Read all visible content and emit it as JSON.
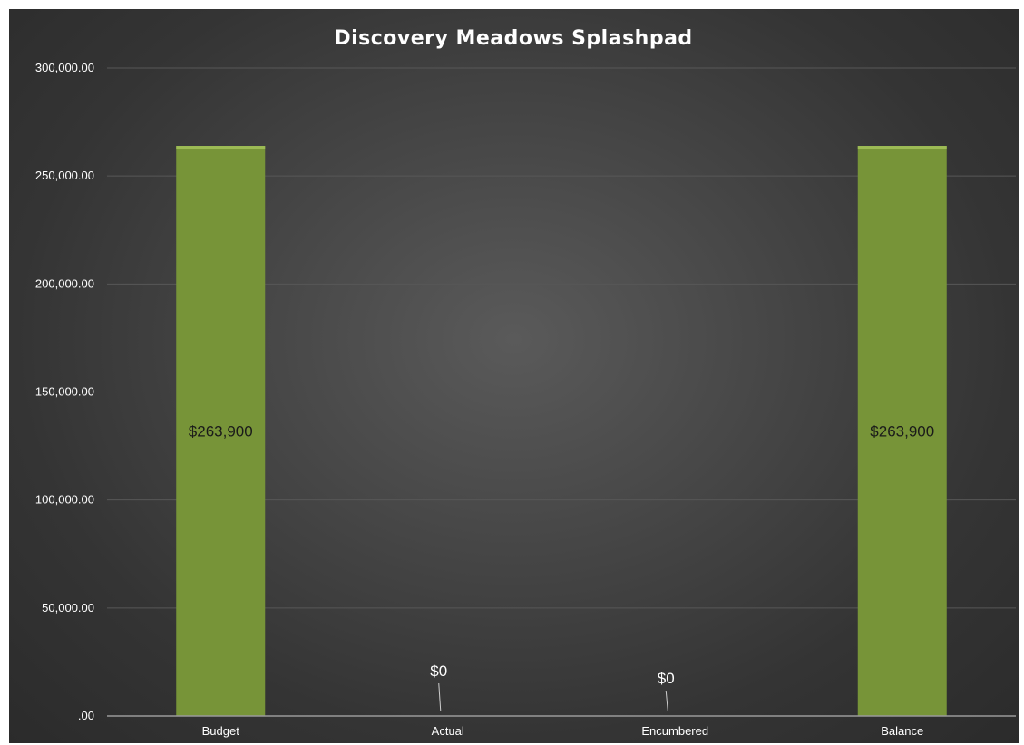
{
  "chart_data": {
    "type": "bar",
    "title": "Discovery Meadows Splashpad",
    "categories": [
      "Budget",
      "Actual",
      "Encumbered",
      "Balance"
    ],
    "values": [
      263900,
      0,
      0,
      263900
    ],
    "data_labels": [
      "$263,900",
      "$0",
      "$0",
      "$263,900"
    ],
    "ylim": [
      0,
      300000
    ],
    "yticks": [
      0,
      50000,
      100000,
      150000,
      200000,
      250000,
      300000
    ],
    "ytick_labels": [
      ".00",
      "50,000.00",
      "100,000.00",
      "150,000.00",
      "200,000.00",
      "250,000.00",
      "300,000.00"
    ],
    "xlabel": "",
    "ylabel": "",
    "grid": true,
    "legend": "none",
    "colors": {
      "bar": "#779438",
      "bar_top": "#9dbb55",
      "background": "#3c3c3c",
      "grid": "#575757",
      "axis": "#9a9a9a",
      "text": "#ffffff"
    }
  }
}
